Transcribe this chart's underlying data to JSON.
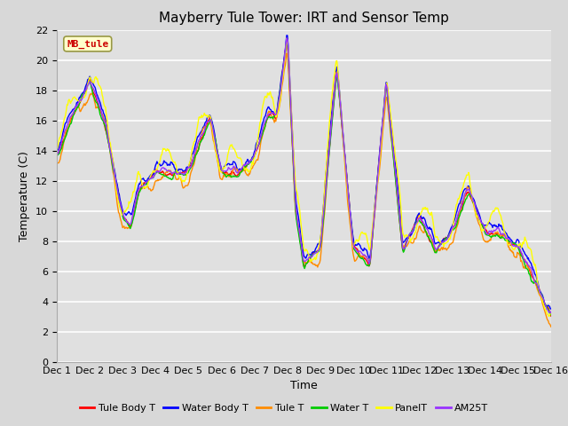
{
  "title": "Mayberry Tule Tower: IRT and Sensor Temp",
  "xlabel": "Time",
  "ylabel": "Temperature (C)",
  "annotation_text": "MB_tule",
  "ylim": [
    0,
    22
  ],
  "yticks": [
    0,
    2,
    4,
    6,
    8,
    10,
    12,
    14,
    16,
    18,
    20,
    22
  ],
  "xlim": [
    0,
    360
  ],
  "xtick_labels": [
    "Dec 1",
    "Dec 2",
    "Dec 3",
    "Dec 4",
    "Dec 5",
    "Dec 6",
    "Dec 7",
    "Dec 8",
    "Dec 9",
    "Dec 10",
    "Dec 11",
    "Dec 12",
    "Dec 13",
    "Dec 14",
    "Dec 15",
    "Dec 16"
  ],
  "xtick_positions": [
    0,
    24,
    48,
    72,
    96,
    120,
    144,
    168,
    192,
    216,
    240,
    264,
    288,
    312,
    336,
    360
  ],
  "series_colors": {
    "Tule Body T": "#ff0000",
    "Water Body T": "#0000ff",
    "Tule T": "#ff8c00",
    "Water T": "#00cc00",
    "PanelT": "#ffff00",
    "AM25T": "#9933ff"
  },
  "legend_order": [
    "Tule Body T",
    "Water Body T",
    "Tule T",
    "Water T",
    "PanelT",
    "AM25T"
  ],
  "fig_facecolor": "#d8d8d8",
  "ax_facecolor": "#e0e0e0",
  "grid_color": "#ffffff",
  "title_fontsize": 11,
  "axis_fontsize": 9,
  "tick_fontsize": 8,
  "figsize": [
    6.4,
    4.8
  ],
  "dpi": 100,
  "base_keypoints_t": [
    0,
    12,
    24,
    36,
    48,
    54,
    60,
    72,
    84,
    96,
    108,
    112,
    120,
    132,
    144,
    154,
    160,
    168,
    174,
    180,
    192,
    204,
    216,
    222,
    228,
    240,
    252,
    264,
    276,
    288,
    300,
    312,
    324,
    336,
    348,
    360
  ],
  "base_keypoints_v": [
    14,
    16,
    19,
    15,
    10,
    9,
    11,
    13,
    12,
    13,
    15,
    16,
    13,
    12,
    14,
    16,
    16,
    22,
    10,
    6,
    8,
    19,
    8,
    7,
    6,
    19,
    7,
    10,
    7,
    9,
    11,
    9,
    8,
    8,
    5,
    3.5
  ]
}
